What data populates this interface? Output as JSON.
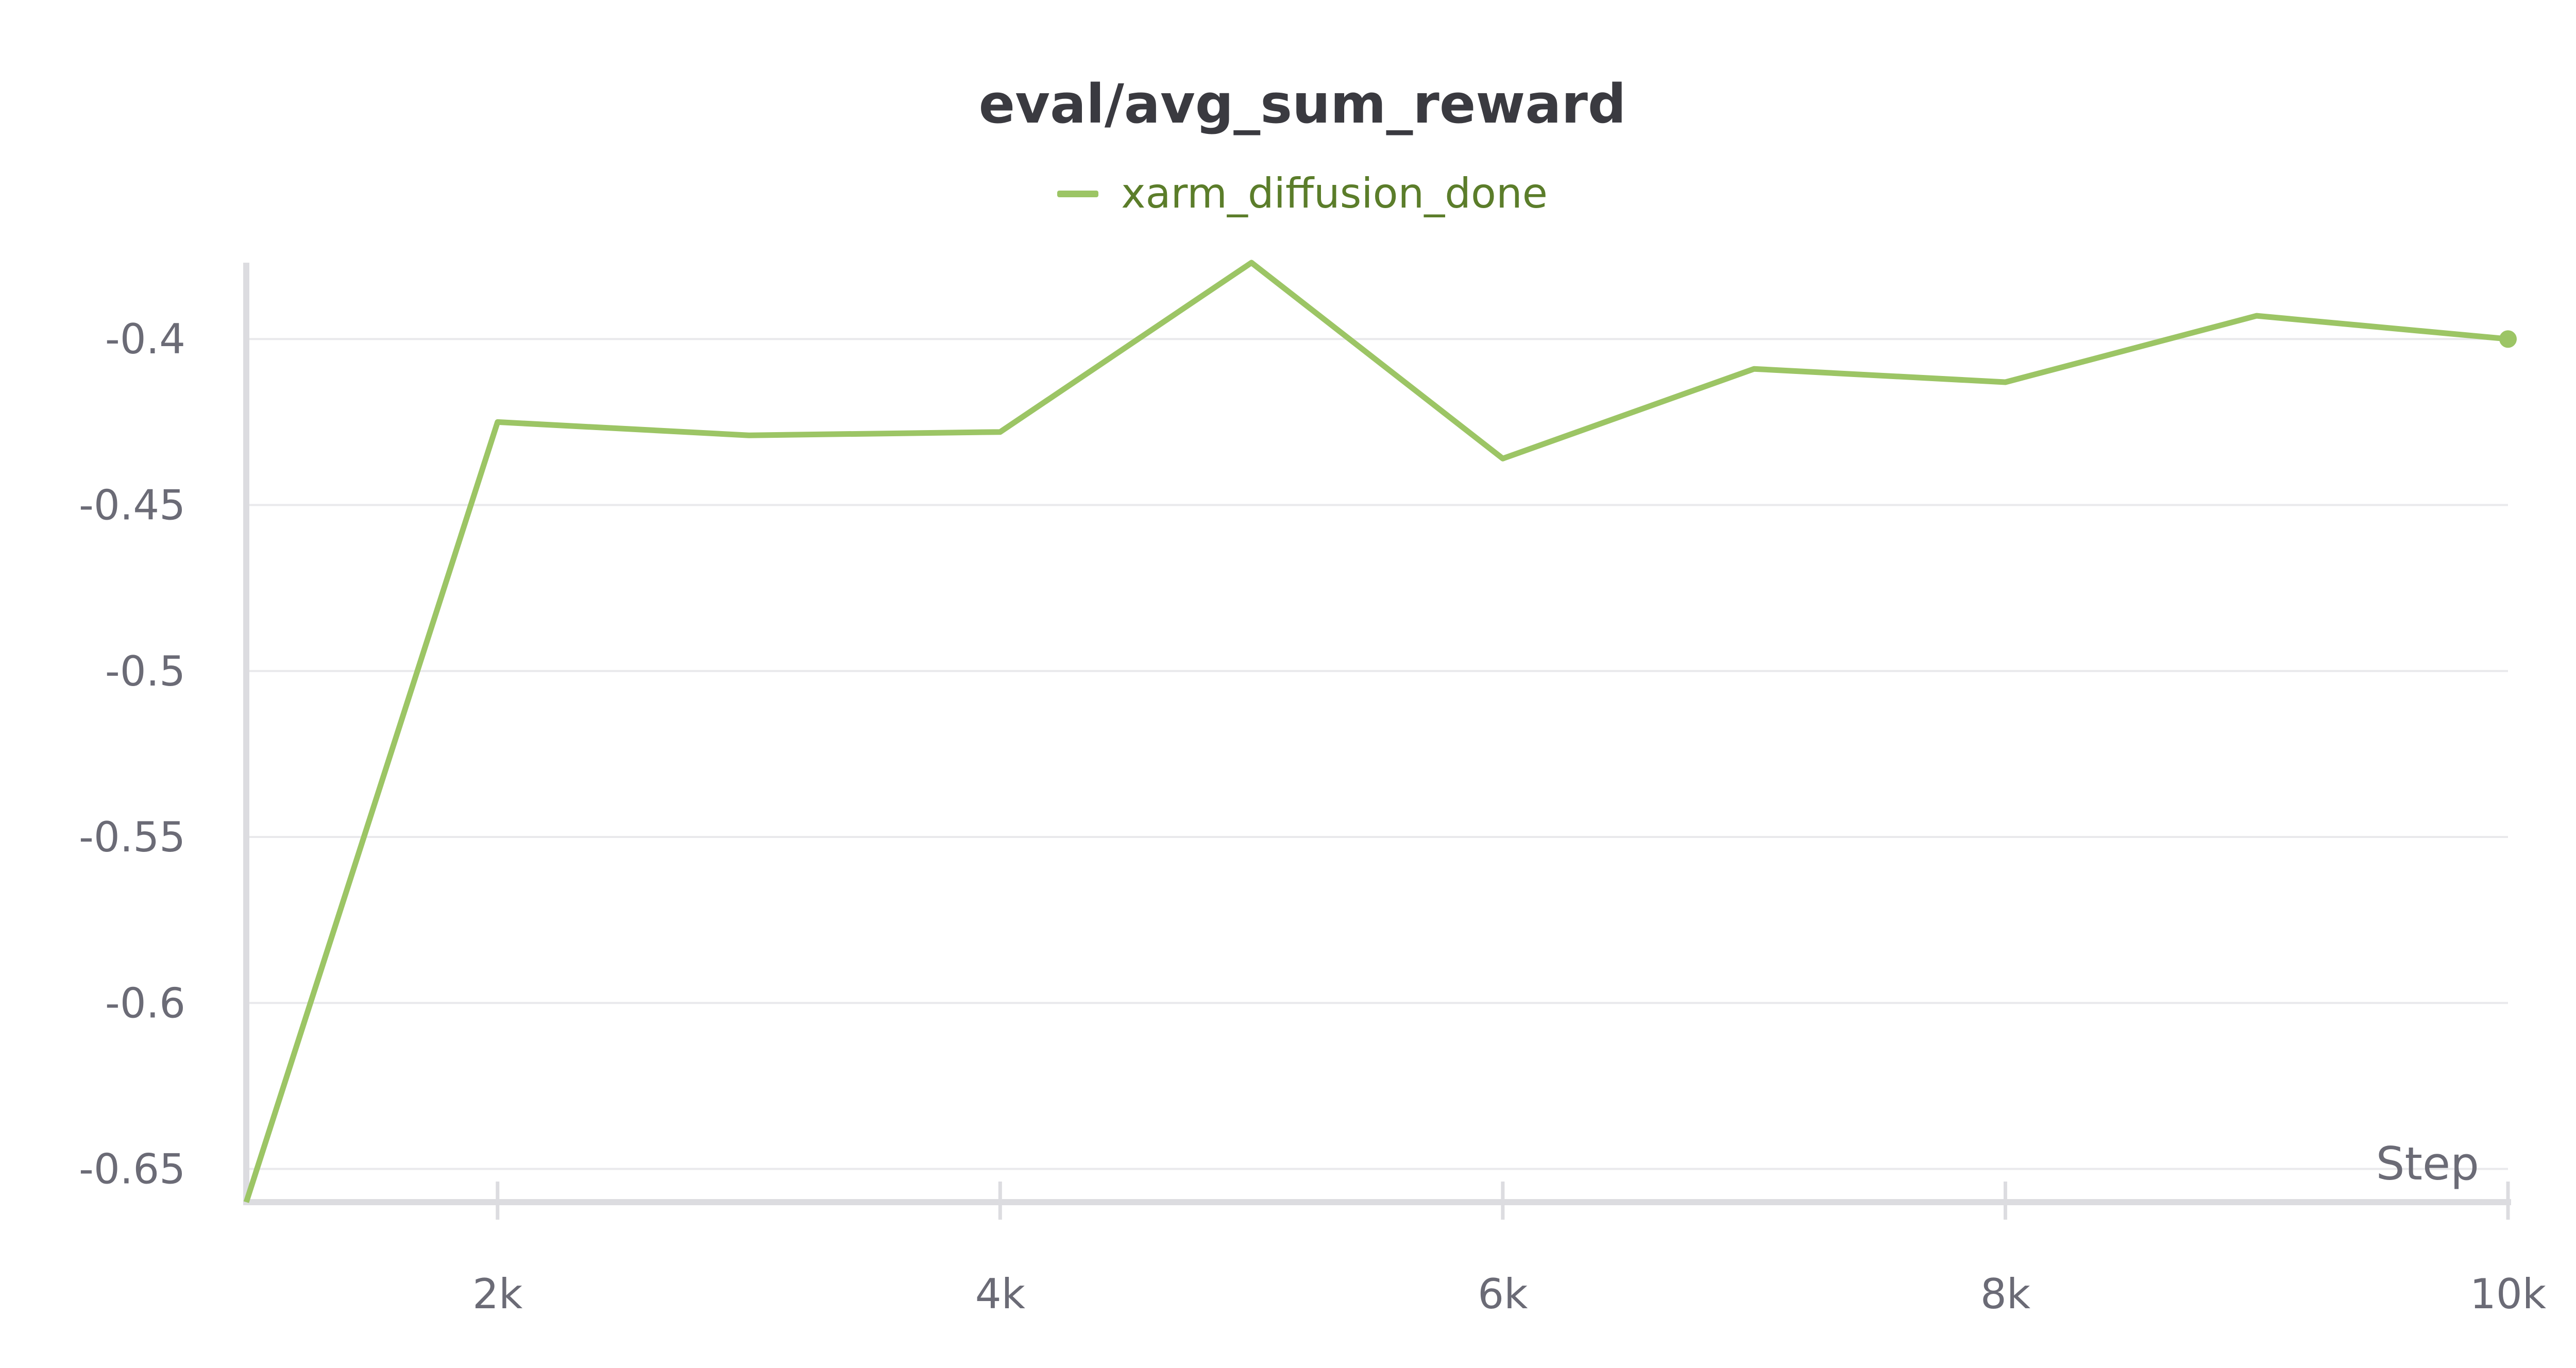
{
  "colors": {
    "series": "#9cc565",
    "legend_text": "#5b7d2a",
    "grid": "#e9e9ec",
    "axis": "#dcdce0",
    "tick_text": "#6b6b76",
    "title_text": "#3a3a40"
  },
  "chart_data": {
    "type": "line",
    "title": "eval/avg_sum_reward",
    "xlabel": "Step",
    "ylabel": "",
    "xlim": [
      1000,
      10000
    ],
    "ylim": [
      -0.66,
      -0.377
    ],
    "x_ticks": [
      2000,
      4000,
      6000,
      8000,
      10000
    ],
    "x_tick_labels": [
      "2k",
      "4k",
      "6k",
      "8k",
      "10k"
    ],
    "y_ticks": [
      -0.65,
      -0.6,
      -0.55,
      -0.5,
      -0.45,
      -0.4
    ],
    "y_tick_labels": [
      "-0.65",
      "-0.6",
      "-0.55",
      "-0.5",
      "-0.45",
      "-0.4"
    ],
    "grid": "horizontal",
    "legend_position": "top-center",
    "series": [
      {
        "name": "xarm_diffusion_done",
        "x": [
          1000,
          2000,
          3000,
          4000,
          5000,
          6000,
          7000,
          8000,
          9000,
          10000
        ],
        "y": [
          -0.66,
          -0.425,
          -0.429,
          -0.428,
          -0.377,
          -0.436,
          -0.409,
          -0.413,
          -0.393,
          -0.4
        ]
      }
    ]
  }
}
